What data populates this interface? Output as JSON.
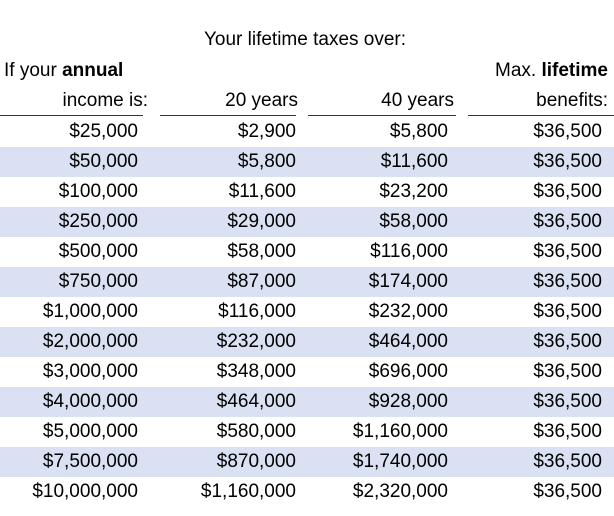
{
  "header": {
    "super": "Your lifetime taxes over:",
    "income_line1_prefix": "If your ",
    "income_line1_bold": "annual",
    "income_line2": "income is:",
    "years20": "20 years",
    "years40": "40 years",
    "max_line1_prefix": "Max. ",
    "max_line1_bold": "lifetime",
    "max_line2": "benefits:"
  },
  "rows": [
    {
      "income": "$25,000",
      "tax20": "$2,900",
      "tax40": "$5,800",
      "benefit": "$36,500"
    },
    {
      "income": "$50,000",
      "tax20": "$5,800",
      "tax40": "$11,600",
      "benefit": "$36,500"
    },
    {
      "income": "$100,000",
      "tax20": "$11,600",
      "tax40": "$23,200",
      "benefit": "$36,500"
    },
    {
      "income": "$250,000",
      "tax20": "$29,000",
      "tax40": "$58,000",
      "benefit": "$36,500"
    },
    {
      "income": "$500,000",
      "tax20": "$58,000",
      "tax40": "$116,000",
      "benefit": "$36,500"
    },
    {
      "income": "$750,000",
      "tax20": "$87,000",
      "tax40": "$174,000",
      "benefit": "$36,500"
    },
    {
      "income": "$1,000,000",
      "tax20": "$116,000",
      "tax40": "$232,000",
      "benefit": "$36,500"
    },
    {
      "income": "$2,000,000",
      "tax20": "$232,000",
      "tax40": "$464,000",
      "benefit": "$36,500"
    },
    {
      "income": "$3,000,000",
      "tax20": "$348,000",
      "tax40": "$696,000",
      "benefit": "$36,500"
    },
    {
      "income": "$4,000,000",
      "tax20": "$464,000",
      "tax40": "$928,000",
      "benefit": "$36,500"
    },
    {
      "income": "$5,000,000",
      "tax20": "$580,000",
      "tax40": "$1,160,000",
      "benefit": "$36,500"
    },
    {
      "income": "$7,500,000",
      "tax20": "$870,000",
      "tax40": "$1,740,000",
      "benefit": "$36,500"
    },
    {
      "income": "$10,000,000",
      "tax20": "$1,160,000",
      "tax40": "$2,320,000",
      "benefit": "$36,500"
    }
  ],
  "colors": {
    "shaded_row": "#d9e1f2",
    "rule": "#333333"
  }
}
